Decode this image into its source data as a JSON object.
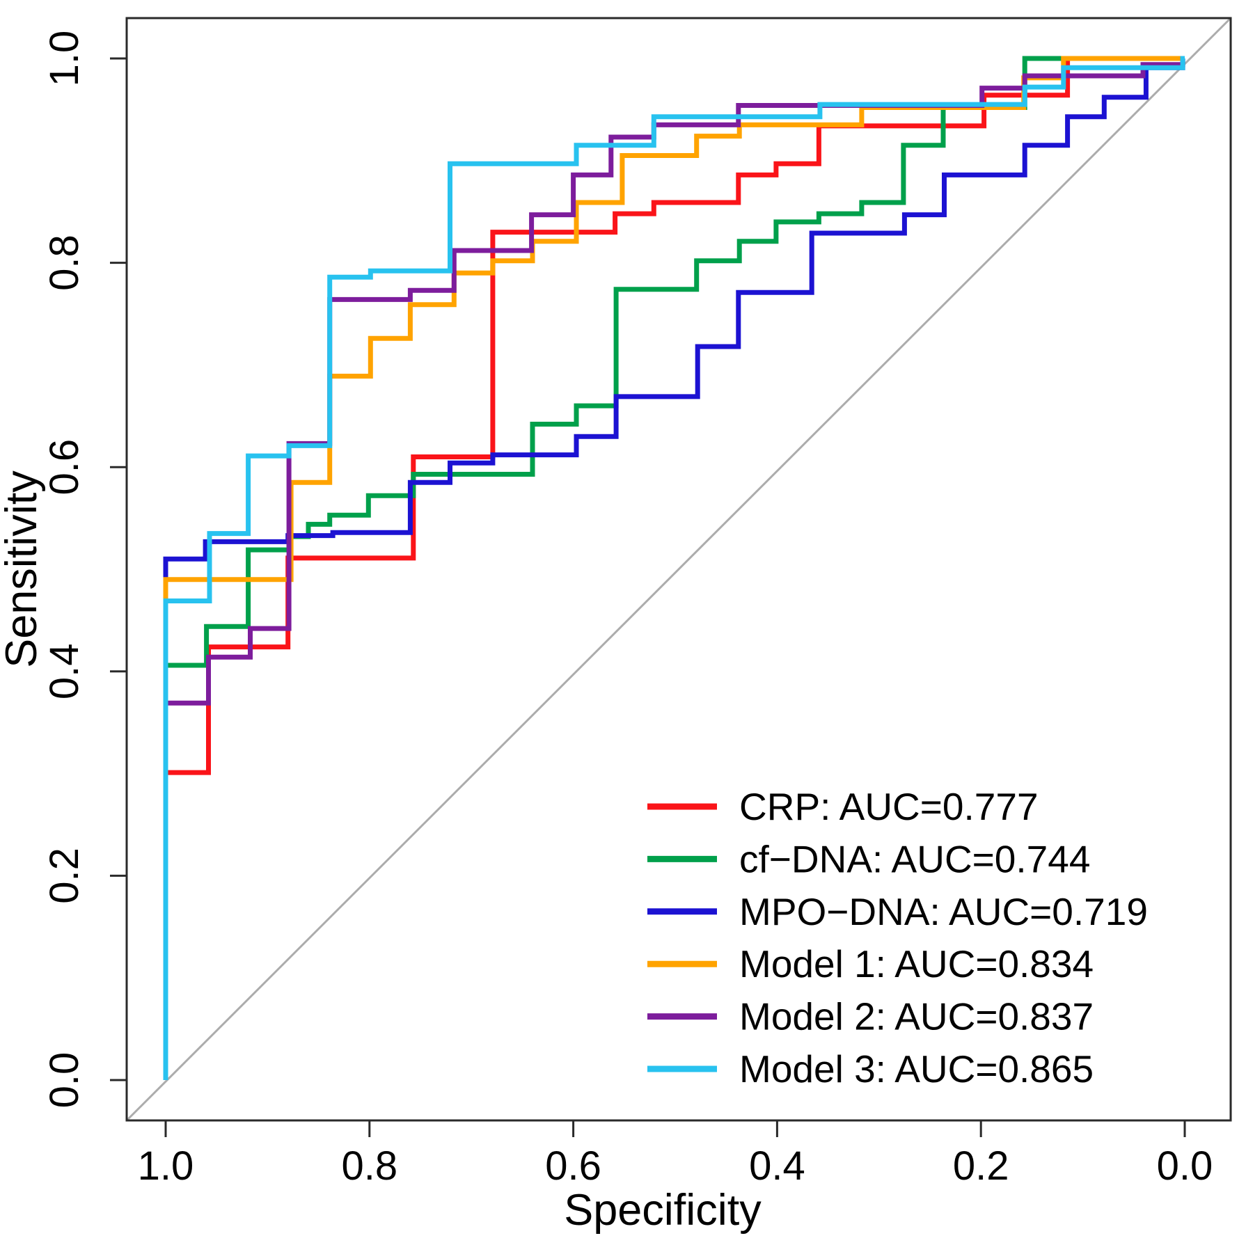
{
  "chart_data": {
    "type": "line",
    "subtype": "roc-step-curves",
    "title": "",
    "xlabel": "Specificity",
    "ylabel": "Sensitivity",
    "xlim": [
      1.0,
      0.0
    ],
    "ylim": [
      0.0,
      1.0
    ],
    "x_ticks": [
      "1.0",
      "0.8",
      "0.6",
      "0.4",
      "0.2",
      "0.0"
    ],
    "y_ticks": [
      "0.0",
      "0.2",
      "0.4",
      "0.6",
      "0.8",
      "1.0"
    ],
    "grid": false,
    "diagonal_reference_line": true,
    "legend_position": "bottom-right",
    "series": [
      {
        "name": "CRP",
        "auc": 0.777,
        "legend_label": "CRP: AUC=0.777",
        "color": "#FA1419",
        "points": [
          [
            1.0,
            0.0
          ],
          [
            1.0,
            0.301
          ],
          [
            0.958,
            0.301
          ],
          [
            0.958,
            0.424
          ],
          [
            0.88,
            0.424
          ],
          [
            0.88,
            0.511
          ],
          [
            0.757,
            0.511
          ],
          [
            0.757,
            0.61
          ],
          [
            0.679,
            0.61
          ],
          [
            0.679,
            0.83
          ],
          [
            0.559,
            0.83
          ],
          [
            0.559,
            0.848
          ],
          [
            0.521,
            0.848
          ],
          [
            0.521,
            0.859
          ],
          [
            0.438,
            0.859
          ],
          [
            0.438,
            0.886
          ],
          [
            0.401,
            0.886
          ],
          [
            0.401,
            0.897
          ],
          [
            0.359,
            0.897
          ],
          [
            0.359,
            0.934
          ],
          [
            0.197,
            0.934
          ],
          [
            0.197,
            0.964
          ],
          [
            0.115,
            0.964
          ],
          [
            0.115,
            1.0
          ],
          [
            0.0,
            1.0
          ]
        ]
      },
      {
        "name": "cf-DNA",
        "auc": 0.744,
        "legend_label": "cf−DNA: AUC=0.744",
        "color": "#00A04B",
        "points": [
          [
            1.0,
            0.0
          ],
          [
            1.0,
            0.406
          ],
          [
            0.96,
            0.406
          ],
          [
            0.96,
            0.444
          ],
          [
            0.919,
            0.444
          ],
          [
            0.919,
            0.519
          ],
          [
            0.879,
            0.519
          ],
          [
            0.879,
            0.532
          ],
          [
            0.86,
            0.532
          ],
          [
            0.86,
            0.544
          ],
          [
            0.839,
            0.544
          ],
          [
            0.839,
            0.553
          ],
          [
            0.801,
            0.553
          ],
          [
            0.801,
            0.572
          ],
          [
            0.757,
            0.572
          ],
          [
            0.757,
            0.593
          ],
          [
            0.64,
            0.593
          ],
          [
            0.64,
            0.642
          ],
          [
            0.597,
            0.642
          ],
          [
            0.597,
            0.66
          ],
          [
            0.558,
            0.66
          ],
          [
            0.558,
            0.774
          ],
          [
            0.479,
            0.774
          ],
          [
            0.479,
            0.802
          ],
          [
            0.437,
            0.802
          ],
          [
            0.437,
            0.821
          ],
          [
            0.401,
            0.821
          ],
          [
            0.401,
            0.84
          ],
          [
            0.359,
            0.84
          ],
          [
            0.359,
            0.848
          ],
          [
            0.317,
            0.848
          ],
          [
            0.317,
            0.859
          ],
          [
            0.276,
            0.859
          ],
          [
            0.276,
            0.915
          ],
          [
            0.237,
            0.915
          ],
          [
            0.237,
            0.952
          ],
          [
            0.157,
            0.952
          ],
          [
            0.157,
            1.0
          ],
          [
            0.0,
            1.0
          ]
        ]
      },
      {
        "name": "MPO-DNA",
        "auc": 0.719,
        "legend_label": "MPO−DNA: AUC=0.719",
        "color": "#1C12D2",
        "points": [
          [
            1.0,
            0.0
          ],
          [
            1.0,
            0.51
          ],
          [
            0.961,
            0.51
          ],
          [
            0.961,
            0.527
          ],
          [
            0.88,
            0.527
          ],
          [
            0.88,
            0.533
          ],
          [
            0.836,
            0.533
          ],
          [
            0.836,
            0.536
          ],
          [
            0.76,
            0.536
          ],
          [
            0.76,
            0.585
          ],
          [
            0.721,
            0.585
          ],
          [
            0.721,
            0.604
          ],
          [
            0.679,
            0.604
          ],
          [
            0.679,
            0.612
          ],
          [
            0.597,
            0.612
          ],
          [
            0.597,
            0.63
          ],
          [
            0.558,
            0.63
          ],
          [
            0.558,
            0.669
          ],
          [
            0.478,
            0.669
          ],
          [
            0.478,
            0.718
          ],
          [
            0.438,
            0.718
          ],
          [
            0.438,
            0.771
          ],
          [
            0.366,
            0.771
          ],
          [
            0.366,
            0.829
          ],
          [
            0.275,
            0.829
          ],
          [
            0.275,
            0.847
          ],
          [
            0.236,
            0.847
          ],
          [
            0.236,
            0.886
          ],
          [
            0.157,
            0.886
          ],
          [
            0.157,
            0.915
          ],
          [
            0.115,
            0.915
          ],
          [
            0.115,
            0.943
          ],
          [
            0.079,
            0.943
          ],
          [
            0.079,
            0.962
          ],
          [
            0.038,
            0.962
          ],
          [
            0.038,
            0.991
          ],
          [
            0.002,
            0.991
          ],
          [
            0.002,
            1.0
          ],
          [
            0.0,
            1.0
          ]
        ]
      },
      {
        "name": "Model 1",
        "auc": 0.834,
        "legend_label": "Model 1: AUC=0.834",
        "color": "#FFA300",
        "points": [
          [
            1.0,
            0.0
          ],
          [
            1.0,
            0.49
          ],
          [
            0.877,
            0.49
          ],
          [
            0.877,
            0.585
          ],
          [
            0.839,
            0.585
          ],
          [
            0.839,
            0.689
          ],
          [
            0.799,
            0.689
          ],
          [
            0.799,
            0.726
          ],
          [
            0.76,
            0.726
          ],
          [
            0.76,
            0.759
          ],
          [
            0.717,
            0.759
          ],
          [
            0.717,
            0.79
          ],
          [
            0.679,
            0.79
          ],
          [
            0.679,
            0.802
          ],
          [
            0.64,
            0.802
          ],
          [
            0.64,
            0.821
          ],
          [
            0.597,
            0.821
          ],
          [
            0.597,
            0.859
          ],
          [
            0.552,
            0.859
          ],
          [
            0.552,
            0.905
          ],
          [
            0.479,
            0.905
          ],
          [
            0.479,
            0.924
          ],
          [
            0.437,
            0.924
          ],
          [
            0.437,
            0.935
          ],
          [
            0.317,
            0.935
          ],
          [
            0.317,
            0.952
          ],
          [
            0.158,
            0.952
          ],
          [
            0.158,
            0.981
          ],
          [
            0.119,
            0.981
          ],
          [
            0.119,
            1.0
          ],
          [
            0.0,
            1.0
          ]
        ]
      },
      {
        "name": "Model 2",
        "auc": 0.837,
        "legend_label": "Model 2: AUC=0.837",
        "color": "#7D1D9C",
        "points": [
          [
            1.0,
            0.0
          ],
          [
            1.0,
            0.369
          ],
          [
            0.958,
            0.369
          ],
          [
            0.958,
            0.414
          ],
          [
            0.917,
            0.414
          ],
          [
            0.917,
            0.442
          ],
          [
            0.879,
            0.442
          ],
          [
            0.879,
            0.623
          ],
          [
            0.839,
            0.623
          ],
          [
            0.839,
            0.764
          ],
          [
            0.76,
            0.764
          ],
          [
            0.76,
            0.773
          ],
          [
            0.717,
            0.773
          ],
          [
            0.717,
            0.812
          ],
          [
            0.641,
            0.812
          ],
          [
            0.641,
            0.847
          ],
          [
            0.6,
            0.847
          ],
          [
            0.6,
            0.886
          ],
          [
            0.563,
            0.886
          ],
          [
            0.563,
            0.923
          ],
          [
            0.521,
            0.923
          ],
          [
            0.521,
            0.935
          ],
          [
            0.438,
            0.935
          ],
          [
            0.438,
            0.954
          ],
          [
            0.199,
            0.954
          ],
          [
            0.199,
            0.971
          ],
          [
            0.157,
            0.971
          ],
          [
            0.157,
            0.983
          ],
          [
            0.041,
            0.983
          ],
          [
            0.041,
            0.994
          ],
          [
            0.002,
            0.994
          ],
          [
            0.002,
            1.0
          ],
          [
            0.0,
            1.0
          ]
        ]
      },
      {
        "name": "Model 3",
        "auc": 0.865,
        "legend_label": "Model 3: AUC=0.865",
        "color": "#28C2EF",
        "points": [
          [
            1.0,
            0.0
          ],
          [
            1.0,
            0.469
          ],
          [
            0.957,
            0.469
          ],
          [
            0.957,
            0.535
          ],
          [
            0.919,
            0.535
          ],
          [
            0.919,
            0.611
          ],
          [
            0.879,
            0.611
          ],
          [
            0.879,
            0.621
          ],
          [
            0.839,
            0.621
          ],
          [
            0.839,
            0.786
          ],
          [
            0.799,
            0.786
          ],
          [
            0.799,
            0.792
          ],
          [
            0.721,
            0.792
          ],
          [
            0.721,
            0.897
          ],
          [
            0.597,
            0.897
          ],
          [
            0.597,
            0.915
          ],
          [
            0.521,
            0.915
          ],
          [
            0.521,
            0.943
          ],
          [
            0.358,
            0.943
          ],
          [
            0.358,
            0.955
          ],
          [
            0.157,
            0.955
          ],
          [
            0.157,
            0.972
          ],
          [
            0.119,
            0.972
          ],
          [
            0.119,
            0.991
          ],
          [
            0.002,
            0.991
          ],
          [
            0.002,
            1.0
          ],
          [
            0.0,
            1.0
          ]
        ]
      }
    ],
    "colors": {
      "axis": "#2A2A2A",
      "diagonal": "#ACACAC",
      "background": "#FFFFFF",
      "text": "#000000"
    }
  }
}
